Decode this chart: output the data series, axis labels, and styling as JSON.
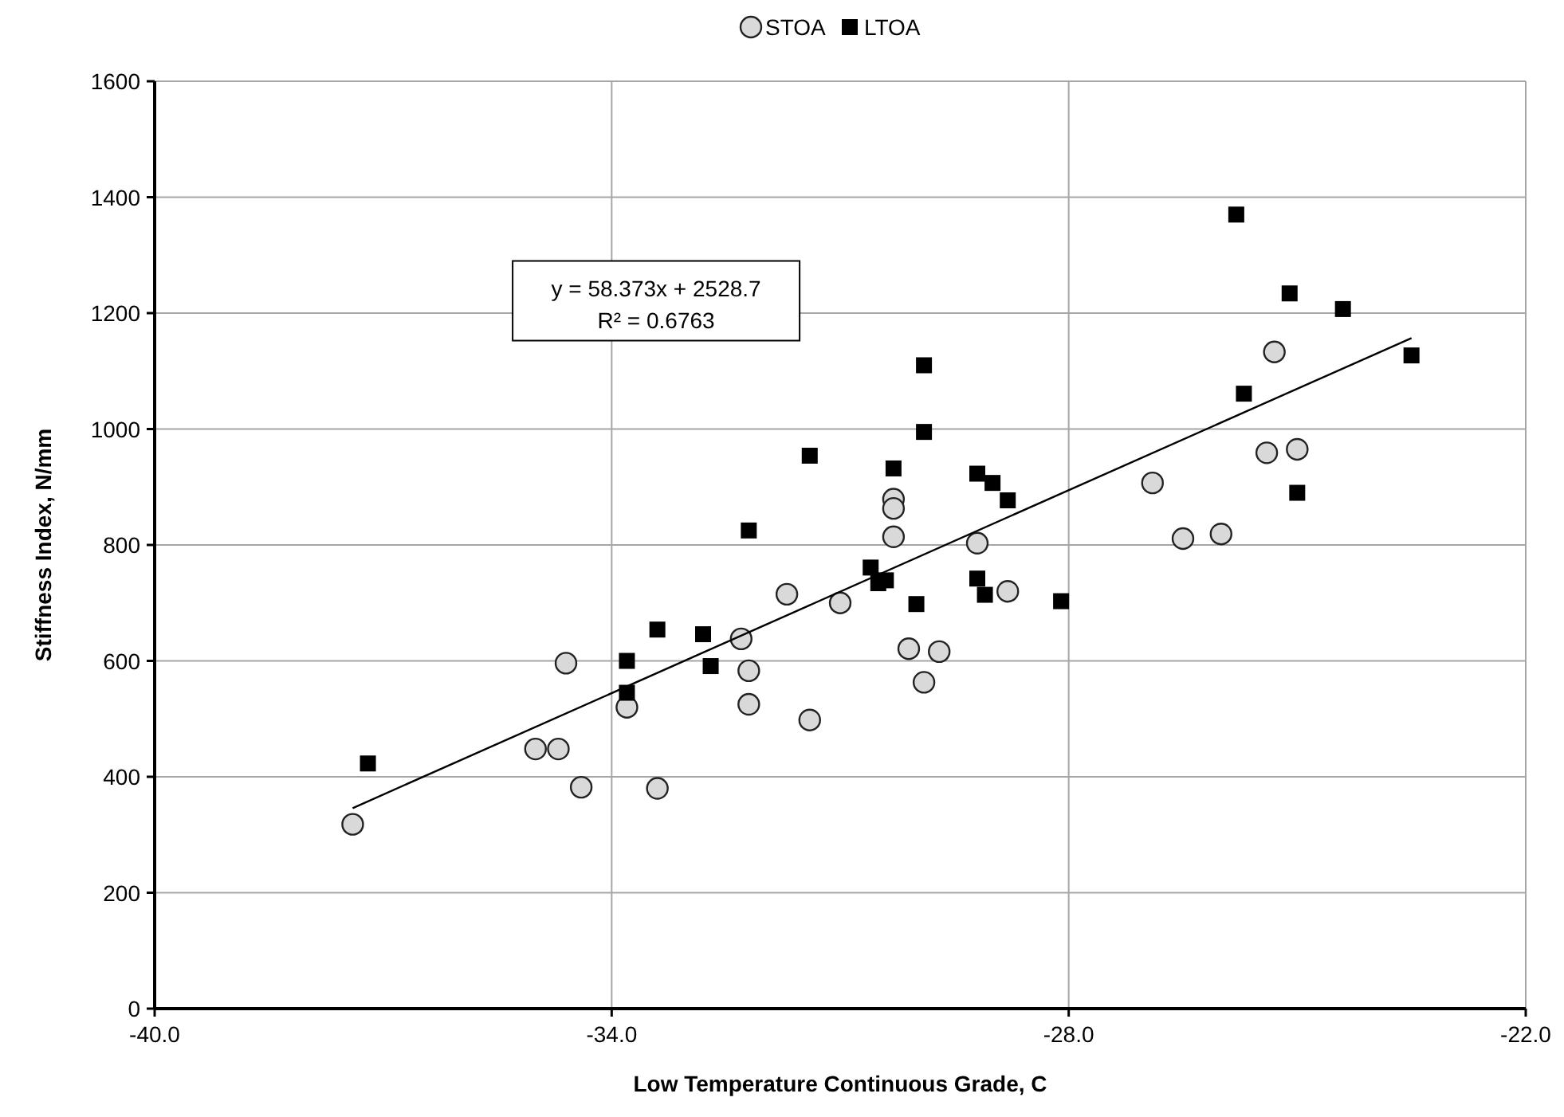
{
  "chart_data": {
    "type": "scatter",
    "xlabel": "Low Temperature Continuous Grade, C",
    "ylabel": "Stiffness Index, N/mm",
    "xlim": [
      -40,
      -22
    ],
    "xticks": [
      {
        "value": -40,
        "label": "-40.0"
      },
      {
        "value": -34,
        "label": "-34.0"
      },
      {
        "value": -28,
        "label": "-28.0"
      },
      {
        "value": -22,
        "label": "-22.0"
      }
    ],
    "ylim": [
      0,
      1600
    ],
    "yticks": [
      0,
      200,
      400,
      600,
      800,
      1000,
      1200,
      1400,
      1600
    ],
    "grid": true,
    "legend": "top",
    "annotations": [
      "y = 58.373x + 2528.7",
      "R² = 0.6763"
    ],
    "series": [
      {
        "name": "STOA",
        "color": "#d9d9d9",
        "marker": "circle",
        "x": [
          -37.4,
          -35.0,
          -34.7,
          -34.6,
          -34.4,
          -33.4,
          -33.8,
          -31.7,
          -32.3,
          -32.2,
          -32.2,
          -31.4,
          -31.0,
          -30.3,
          -30.3,
          -30.3,
          -29.2,
          -28.8,
          -30.1,
          -29.7,
          -29.9,
          -26.9,
          -26.5,
          -26.0,
          -25.3,
          -25.4,
          -25.0
        ],
        "values": [
          318,
          448,
          448,
          596,
          382,
          380,
          520,
          715,
          638,
          583,
          525,
          498,
          700,
          879,
          863,
          814,
          803,
          720,
          621,
          616,
          563,
          907,
          811,
          819,
          1133,
          959,
          965
        ]
      },
      {
        "name": "LTOA",
        "color": "#000000",
        "marker": "square",
        "x": [
          -37.2,
          -33.8,
          -33.8,
          -33.4,
          -32.8,
          -32.7,
          -32.2,
          -31.4,
          -29.9,
          -29.9,
          -30.3,
          -29.2,
          -29.0,
          -28.8,
          -30.6,
          -30.5,
          -30.4,
          -30.0,
          -29.2,
          -29.1,
          -28.1,
          -25.0,
          -25.1,
          -24.4,
          -23.5,
          -25.7,
          -25.8
        ],
        "values": [
          423,
          600,
          545,
          654,
          646,
          591,
          825,
          954,
          1110,
          995,
          932,
          923,
          907,
          877,
          761,
          734,
          739,
          698,
          742,
          714,
          703,
          890,
          1234,
          1207,
          1127,
          1061,
          1370
        ]
      },
      {
        "type": "line",
        "color": "#000000",
        "line_style": "solid",
        "marker": "none",
        "x": [
          -37.4,
          -23.5
        ],
        "values": [
          346,
          1157
        ]
      }
    ]
  }
}
